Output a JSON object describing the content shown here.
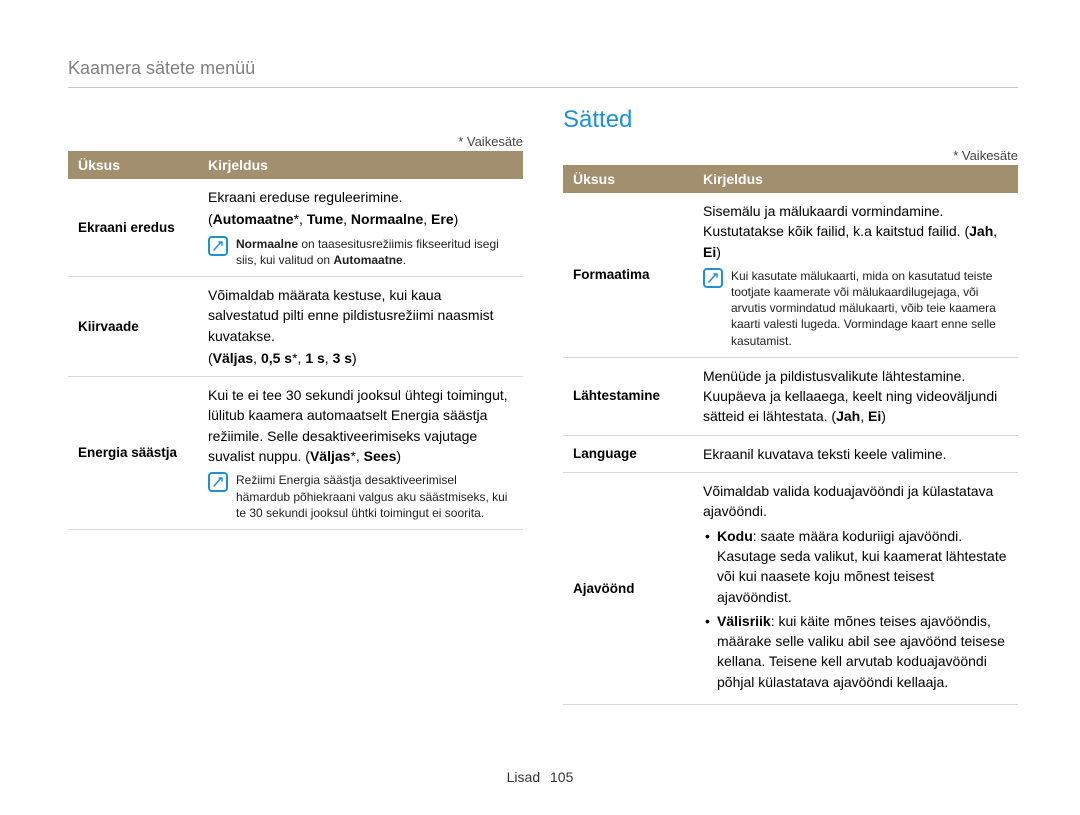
{
  "colors": {
    "header_bg": "#a28f6d",
    "header_text": "#ffffff",
    "title_color": "#1e90d8",
    "breadcrumb_color": "#808080",
    "rule_color": "#d6d6d6",
    "note_border": "#1e90d8",
    "body_text": "#000000",
    "background": "#ffffff"
  },
  "typography": {
    "body_fontsize": 14,
    "title_fontsize": 24,
    "breadcrumb_fontsize": 18,
    "note_fontsize": 12,
    "font_family": "Arial, Helvetica, sans-serif"
  },
  "breadcrumb": "Kaamera sätete menüü",
  "section_title": "Sätted",
  "default_note": "* Vaikesäte",
  "table_header": {
    "col1": "Üksus",
    "col2": "Kirjeldus"
  },
  "footer": {
    "label": "Lisad",
    "page": "105"
  },
  "left_table": [
    {
      "item": "Ekraani eredus",
      "desc": "Ekraani ereduse reguleerimine.",
      "options_html": "(<b>Automaatne</b>*, <b>Tume</b>, <b>Normaalne</b>, <b>Ere</b>)",
      "note_html": "<b>Normaalne</b> on taasesitusrežiimis fikseeritud isegi siis, kui valitud on <b>Automaatne</b>."
    },
    {
      "item": "Kiirvaade",
      "desc": "Võimaldab määrata kestuse, kui kaua salvestatud pilti enne pildistusrežiimi naasmist kuvatakse.",
      "options_html": "(<b>Väljas</b>, <b>0,5 s</b>*, <b>1 s</b>, <b>3 s</b>)"
    },
    {
      "item": "Energia säästja",
      "desc_html": "Kui te ei tee 30 sekundi jooksul ühtegi toimingut, lülitub kaamera automaatselt Energia säästja režiimile. Selle desaktiveerimiseks vajutage suvalist nuppu. (<b>Väljas</b>*, <b>Sees</b>)",
      "note_html": "Režiimi Energia säästja desaktiveerimisel hämardub põhiekraani valgus aku säästmiseks, kui te 30 sekundi jooksul ühtki toimingut ei soorita."
    }
  ],
  "right_table": [
    {
      "item": "Formaatima",
      "desc_html": "Sisemälu ja mälukaardi vormindamine. Kustutatakse kõik failid, k.a kaitstud failid. (<b>Jah</b>, <b>Ei</b>)",
      "note_html": "Kui kasutate mälukaarti, mida on kasutatud teiste tootjate kaamerate või mälukaardilugejaga, või arvutis vormindatud mälukaarti, võib teie kaamera kaarti valesti lugeda. Vormindage kaart enne selle kasutamist."
    },
    {
      "item": "Lähtestamine",
      "desc_html": "Menüüde ja pildistusvalikute lähtestamine. Kuupäeva ja kellaaega, keelt ning videoväljundi sätteid ei lähtestata. (<b>Jah</b>, <b>Ei</b>)"
    },
    {
      "item": "Language",
      "desc": "Ekraanil kuvatava teksti keele valimine."
    },
    {
      "item": "Ajavöönd",
      "desc": "Võimaldab valida koduajavööndi ja külastatava ajavööndi.",
      "bullets": [
        "<b>Kodu</b>: saate määra koduriigi ajavööndi. Kasutage seda valikut, kui kaamerat lähtestate või kui naasete koju mõnest teisest ajavööndist.",
        "<b>Välisriik</b>: kui käite mõnes teises ajavööndis, määrake selle valiku abil see ajavöönd teisese kellana. Teisene kell arvutab koduajavööndi põhjal külastatava ajavööndi kellaaja."
      ]
    }
  ]
}
